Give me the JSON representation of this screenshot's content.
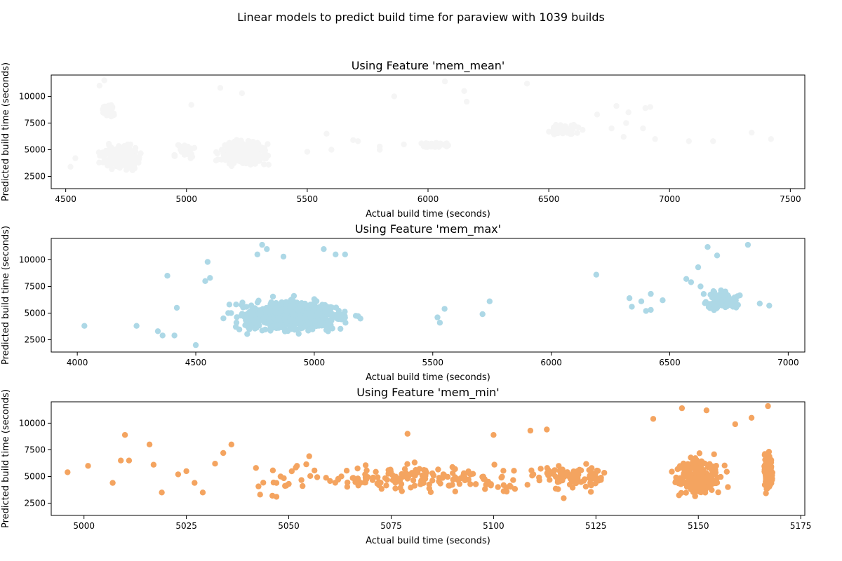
{
  "suptitle": "Linear models to predict build time for paraview with 1039 builds",
  "chart_data": [
    {
      "type": "scatter",
      "title": "Using Feature 'mem_mean'",
      "xlabel": "Actual build time (seconds)",
      "ylabel": "Predicted build time (seconds)",
      "color": "#f5f5f5",
      "xlim": [
        4440,
        7560
      ],
      "ylim": [
        1350,
        12000
      ],
      "xticks": [
        4500,
        5000,
        5500,
        6000,
        6500,
        7000,
        7500
      ],
      "yticks": [
        2500,
        5000,
        7500,
        10000
      ],
      "clusters": [
        {
          "n": 230,
          "x": [
            4560,
            4880
          ],
          "y": [
            2200,
            7800
          ],
          "cx": 4730,
          "cy": 4300
        },
        {
          "n": 300,
          "x": [
            5080,
            5470
          ],
          "y": [
            2900,
            9000
          ],
          "cx": 5230,
          "cy": 4700
        },
        {
          "n": 40,
          "x": [
            4620,
            4740
          ],
          "y": [
            7000,
            11300
          ],
          "cx": 4680,
          "cy": 8700
        },
        {
          "n": 50,
          "x": [
            5920,
            6180
          ],
          "y": [
            4800,
            6200
          ],
          "cx": 6030,
          "cy": 5400
        },
        {
          "n": 70,
          "x": [
            6420,
            6700
          ],
          "y": [
            5800,
            8700
          ],
          "cx": 6560,
          "cy": 6900
        },
        {
          "n": 30,
          "x": [
            4900,
            5100
          ],
          "y": [
            3500,
            7000
          ],
          "cx": 4990,
          "cy": 5000
        }
      ],
      "points": [
        {
          "x": 4660,
          "y": 11500
        },
        {
          "x": 4640,
          "y": 11000
        },
        {
          "x": 5140,
          "y": 10800
        },
        {
          "x": 5230,
          "y": 10300
        },
        {
          "x": 6070,
          "y": 11400
        },
        {
          "x": 6150,
          "y": 10500
        },
        {
          "x": 6160,
          "y": 9500
        },
        {
          "x": 6410,
          "y": 11200
        },
        {
          "x": 5020,
          "y": 9200
        },
        {
          "x": 5860,
          "y": 10000
        },
        {
          "x": 5580,
          "y": 6500
        },
        {
          "x": 5710,
          "y": 5800
        },
        {
          "x": 5800,
          "y": 5300
        },
        {
          "x": 5900,
          "y": 5500
        },
        {
          "x": 5800,
          "y": 5000
        },
        {
          "x": 5690,
          "y": 5900
        },
        {
          "x": 6780,
          "y": 9100
        },
        {
          "x": 6830,
          "y": 8500
        },
        {
          "x": 6900,
          "y": 8900
        },
        {
          "x": 6760,
          "y": 7000
        },
        {
          "x": 6820,
          "y": 7500
        },
        {
          "x": 6890,
          "y": 7000
        },
        {
          "x": 6940,
          "y": 6000
        },
        {
          "x": 7080,
          "y": 5800
        },
        {
          "x": 7180,
          "y": 5800
        },
        {
          "x": 7340,
          "y": 6600
        },
        {
          "x": 7420,
          "y": 6000
        },
        {
          "x": 6810,
          "y": 6200
        },
        {
          "x": 6920,
          "y": 9000
        },
        {
          "x": 4540,
          "y": 4200
        },
        {
          "x": 4520,
          "y": 3400
        },
        {
          "x": 5340,
          "y": 3600
        },
        {
          "x": 4950,
          "y": 4500
        },
        {
          "x": 5500,
          "y": 4800
        },
        {
          "x": 5600,
          "y": 5000
        },
        {
          "x": 6700,
          "y": 8300
        }
      ]
    },
    {
      "type": "scatter",
      "title": "Using Feature 'mem_max'",
      "xlabel": "Actual build time (seconds)",
      "ylabel": "Predicted build time (seconds)",
      "color": "#add8e6",
      "xlim": [
        3890,
        7070
      ],
      "ylim": [
        1350,
        12000
      ],
      "xticks": [
        4000,
        4500,
        5000,
        5500,
        6000,
        6500,
        7000
      ],
      "yticks": [
        2500,
        5000,
        7500,
        10000
      ],
      "clusters": [
        {
          "n": 650,
          "x": [
            4450,
            5400
          ],
          "y": [
            2000,
            9500
          ],
          "cx": 4900,
          "cy": 4700
        },
        {
          "n": 80,
          "x": [
            6590,
            6930
          ],
          "y": [
            4500,
            9300
          ],
          "cx": 6720,
          "cy": 6200
        }
      ],
      "points": [
        {
          "x": 4030,
          "y": 3800
        },
        {
          "x": 4250,
          "y": 3800
        },
        {
          "x": 4340,
          "y": 3300
        },
        {
          "x": 4360,
          "y": 2900
        },
        {
          "x": 4380,
          "y": 8500
        },
        {
          "x": 4410,
          "y": 2900
        },
        {
          "x": 4420,
          "y": 5500
        },
        {
          "x": 4500,
          "y": 2000
        },
        {
          "x": 4550,
          "y": 9800
        },
        {
          "x": 4540,
          "y": 8000
        },
        {
          "x": 4560,
          "y": 8300
        },
        {
          "x": 4780,
          "y": 11400
        },
        {
          "x": 4800,
          "y": 11000
        },
        {
          "x": 4760,
          "y": 10500
        },
        {
          "x": 4870,
          "y": 10300
        },
        {
          "x": 5040,
          "y": 11000
        },
        {
          "x": 5090,
          "y": 10500
        },
        {
          "x": 5130,
          "y": 10500
        },
        {
          "x": 5520,
          "y": 4600
        },
        {
          "x": 5530,
          "y": 4100
        },
        {
          "x": 5550,
          "y": 5400
        },
        {
          "x": 5710,
          "y": 4900
        },
        {
          "x": 5740,
          "y": 6100
        },
        {
          "x": 6190,
          "y": 8600
        },
        {
          "x": 6330,
          "y": 6400
        },
        {
          "x": 6340,
          "y": 5600
        },
        {
          "x": 6380,
          "y": 6100
        },
        {
          "x": 6400,
          "y": 5200
        },
        {
          "x": 6420,
          "y": 6800
        },
        {
          "x": 6470,
          "y": 6200
        },
        {
          "x": 6420,
          "y": 5300
        },
        {
          "x": 6570,
          "y": 8200
        },
        {
          "x": 6590,
          "y": 7900
        },
        {
          "x": 6660,
          "y": 11200
        },
        {
          "x": 6700,
          "y": 10400
        },
        {
          "x": 6830,
          "y": 11400
        },
        {
          "x": 6920,
          "y": 5700
        },
        {
          "x": 6880,
          "y": 5900
        },
        {
          "x": 6620,
          "y": 9300
        },
        {
          "x": 6630,
          "y": 7500
        }
      ]
    },
    {
      "type": "scatter",
      "title": "Using Feature 'mem_min'",
      "xlabel": "Actual build time (seconds)",
      "ylabel": "Predicted build time (seconds)",
      "color": "#f4a460",
      "xlim": [
        4992,
        5176
      ],
      "ylim": [
        1350,
        12000
      ],
      "xticks": [
        5000,
        5025,
        5050,
        5075,
        5100,
        5125,
        5150,
        5175
      ],
      "yticks": [
        2500,
        5000,
        7500,
        10000
      ],
      "clusters": [
        {
          "n": 170,
          "x": [
            4995,
            5140
          ],
          "y": [
            2200,
            9200
          ],
          "cx": 5080,
          "cy": 4800
        },
        {
          "n": 220,
          "x": [
            5140,
            5162
          ],
          "y": [
            2200,
            11500
          ],
          "cx": 5150,
          "cy": 5000
        },
        {
          "n": 170,
          "x": [
            5165,
            5169
          ],
          "y": [
            2300,
            11600
          ],
          "cx": 5167,
          "cy": 5500
        },
        {
          "n": 90,
          "x": [
            5100,
            5140
          ],
          "y": [
            2500,
            8500
          ],
          "cx": 5120,
          "cy": 5000
        }
      ],
      "points": [
        {
          "x": 4996,
          "y": 5400
        },
        {
          "x": 5001,
          "y": 6000
        },
        {
          "x": 5010,
          "y": 8900
        },
        {
          "x": 5016,
          "y": 8000
        },
        {
          "x": 5007,
          "y": 4400
        },
        {
          "x": 5009,
          "y": 6500
        },
        {
          "x": 5011,
          "y": 6500
        },
        {
          "x": 5017,
          "y": 6100
        },
        {
          "x": 5019,
          "y": 3500
        },
        {
          "x": 5023,
          "y": 5200
        },
        {
          "x": 5025,
          "y": 5500
        },
        {
          "x": 5027,
          "y": 4400
        },
        {
          "x": 5029,
          "y": 3500
        },
        {
          "x": 5032,
          "y": 6200
        },
        {
          "x": 5034,
          "y": 7200
        },
        {
          "x": 5036,
          "y": 8000
        },
        {
          "x": 5042,
          "y": 5800
        },
        {
          "x": 5043,
          "y": 3300
        },
        {
          "x": 5046,
          "y": 3200
        },
        {
          "x": 5047,
          "y": 3100
        },
        {
          "x": 5048,
          "y": 5000
        },
        {
          "x": 5050,
          "y": 4300
        },
        {
          "x": 5052,
          "y": 6000
        },
        {
          "x": 5055,
          "y": 6900
        },
        {
          "x": 5079,
          "y": 9000
        },
        {
          "x": 5100,
          "y": 8900
        },
        {
          "x": 5109,
          "y": 9300
        },
        {
          "x": 5113,
          "y": 9400
        },
        {
          "x": 5139,
          "y": 10400
        },
        {
          "x": 5146,
          "y": 11400
        },
        {
          "x": 5152,
          "y": 11200
        },
        {
          "x": 5159,
          "y": 9900
        },
        {
          "x": 5163,
          "y": 10500
        },
        {
          "x": 5167,
          "y": 11600
        }
      ]
    }
  ]
}
